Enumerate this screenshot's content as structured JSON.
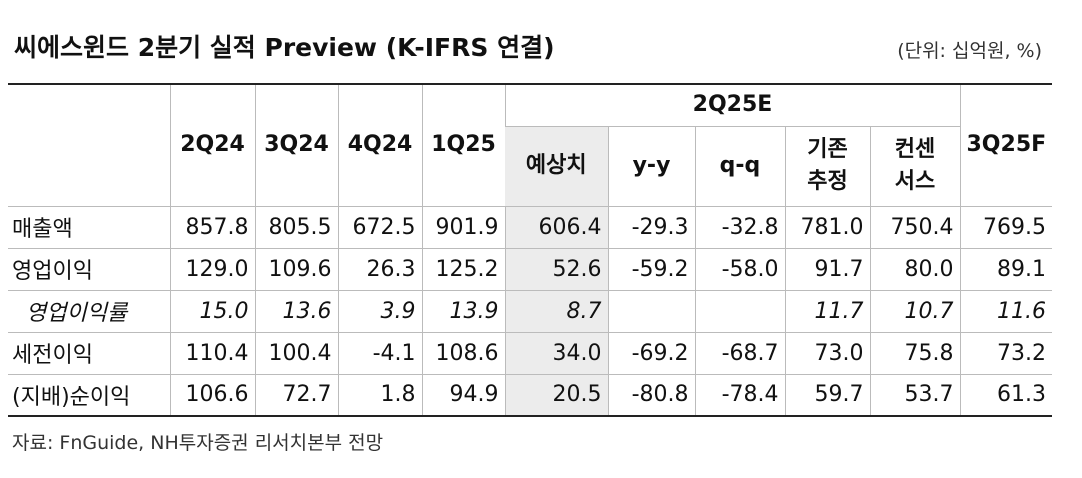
{
  "header": {
    "title": "씨에스윈드 2분기 실적 Preview (K-IFRS 연결)",
    "unit": "(단위: 십억원, %)"
  },
  "table": {
    "columns": [
      "2Q24",
      "3Q24",
      "4Q24",
      "1Q25"
    ],
    "group": "2Q25E",
    "group_columns": [
      "예상치",
      "y-y",
      "q-q",
      "기존\n추정",
      "컨센\n서스"
    ],
    "last_column": "3Q25F",
    "rows": [
      {
        "label": "매출액",
        "cells": [
          "857.8",
          "805.5",
          "672.5",
          "901.9",
          "606.4",
          "-29.3",
          "-32.8",
          "781.0",
          "750.4",
          "769.5"
        ]
      },
      {
        "label": "영업이익",
        "cells": [
          "129.0",
          "109.6",
          "26.3",
          "125.2",
          "52.6",
          "-59.2",
          "-58.0",
          "91.7",
          "80.0",
          "89.1"
        ]
      },
      {
        "label": "영업이익률",
        "italic": true,
        "cells": [
          "15.0",
          "13.6",
          "3.9",
          "13.9",
          "8.7",
          null,
          null,
          "11.7",
          "10.7",
          "11.6"
        ]
      },
      {
        "label": "세전이익",
        "cells": [
          "110.4",
          "100.4",
          "-4.1",
          "108.6",
          "34.0",
          "-69.2",
          "-68.7",
          "73.0",
          "75.8",
          "73.2"
        ]
      },
      {
        "label": "(지배)순이익",
        "cells": [
          "106.6",
          "72.7",
          "1.8",
          "94.9",
          "20.5",
          "-80.8",
          "-78.4",
          "59.7",
          "53.7",
          "61.3"
        ]
      }
    ]
  },
  "source": "자료: FnGuide, NH투자증권 리서치본부 전망"
}
